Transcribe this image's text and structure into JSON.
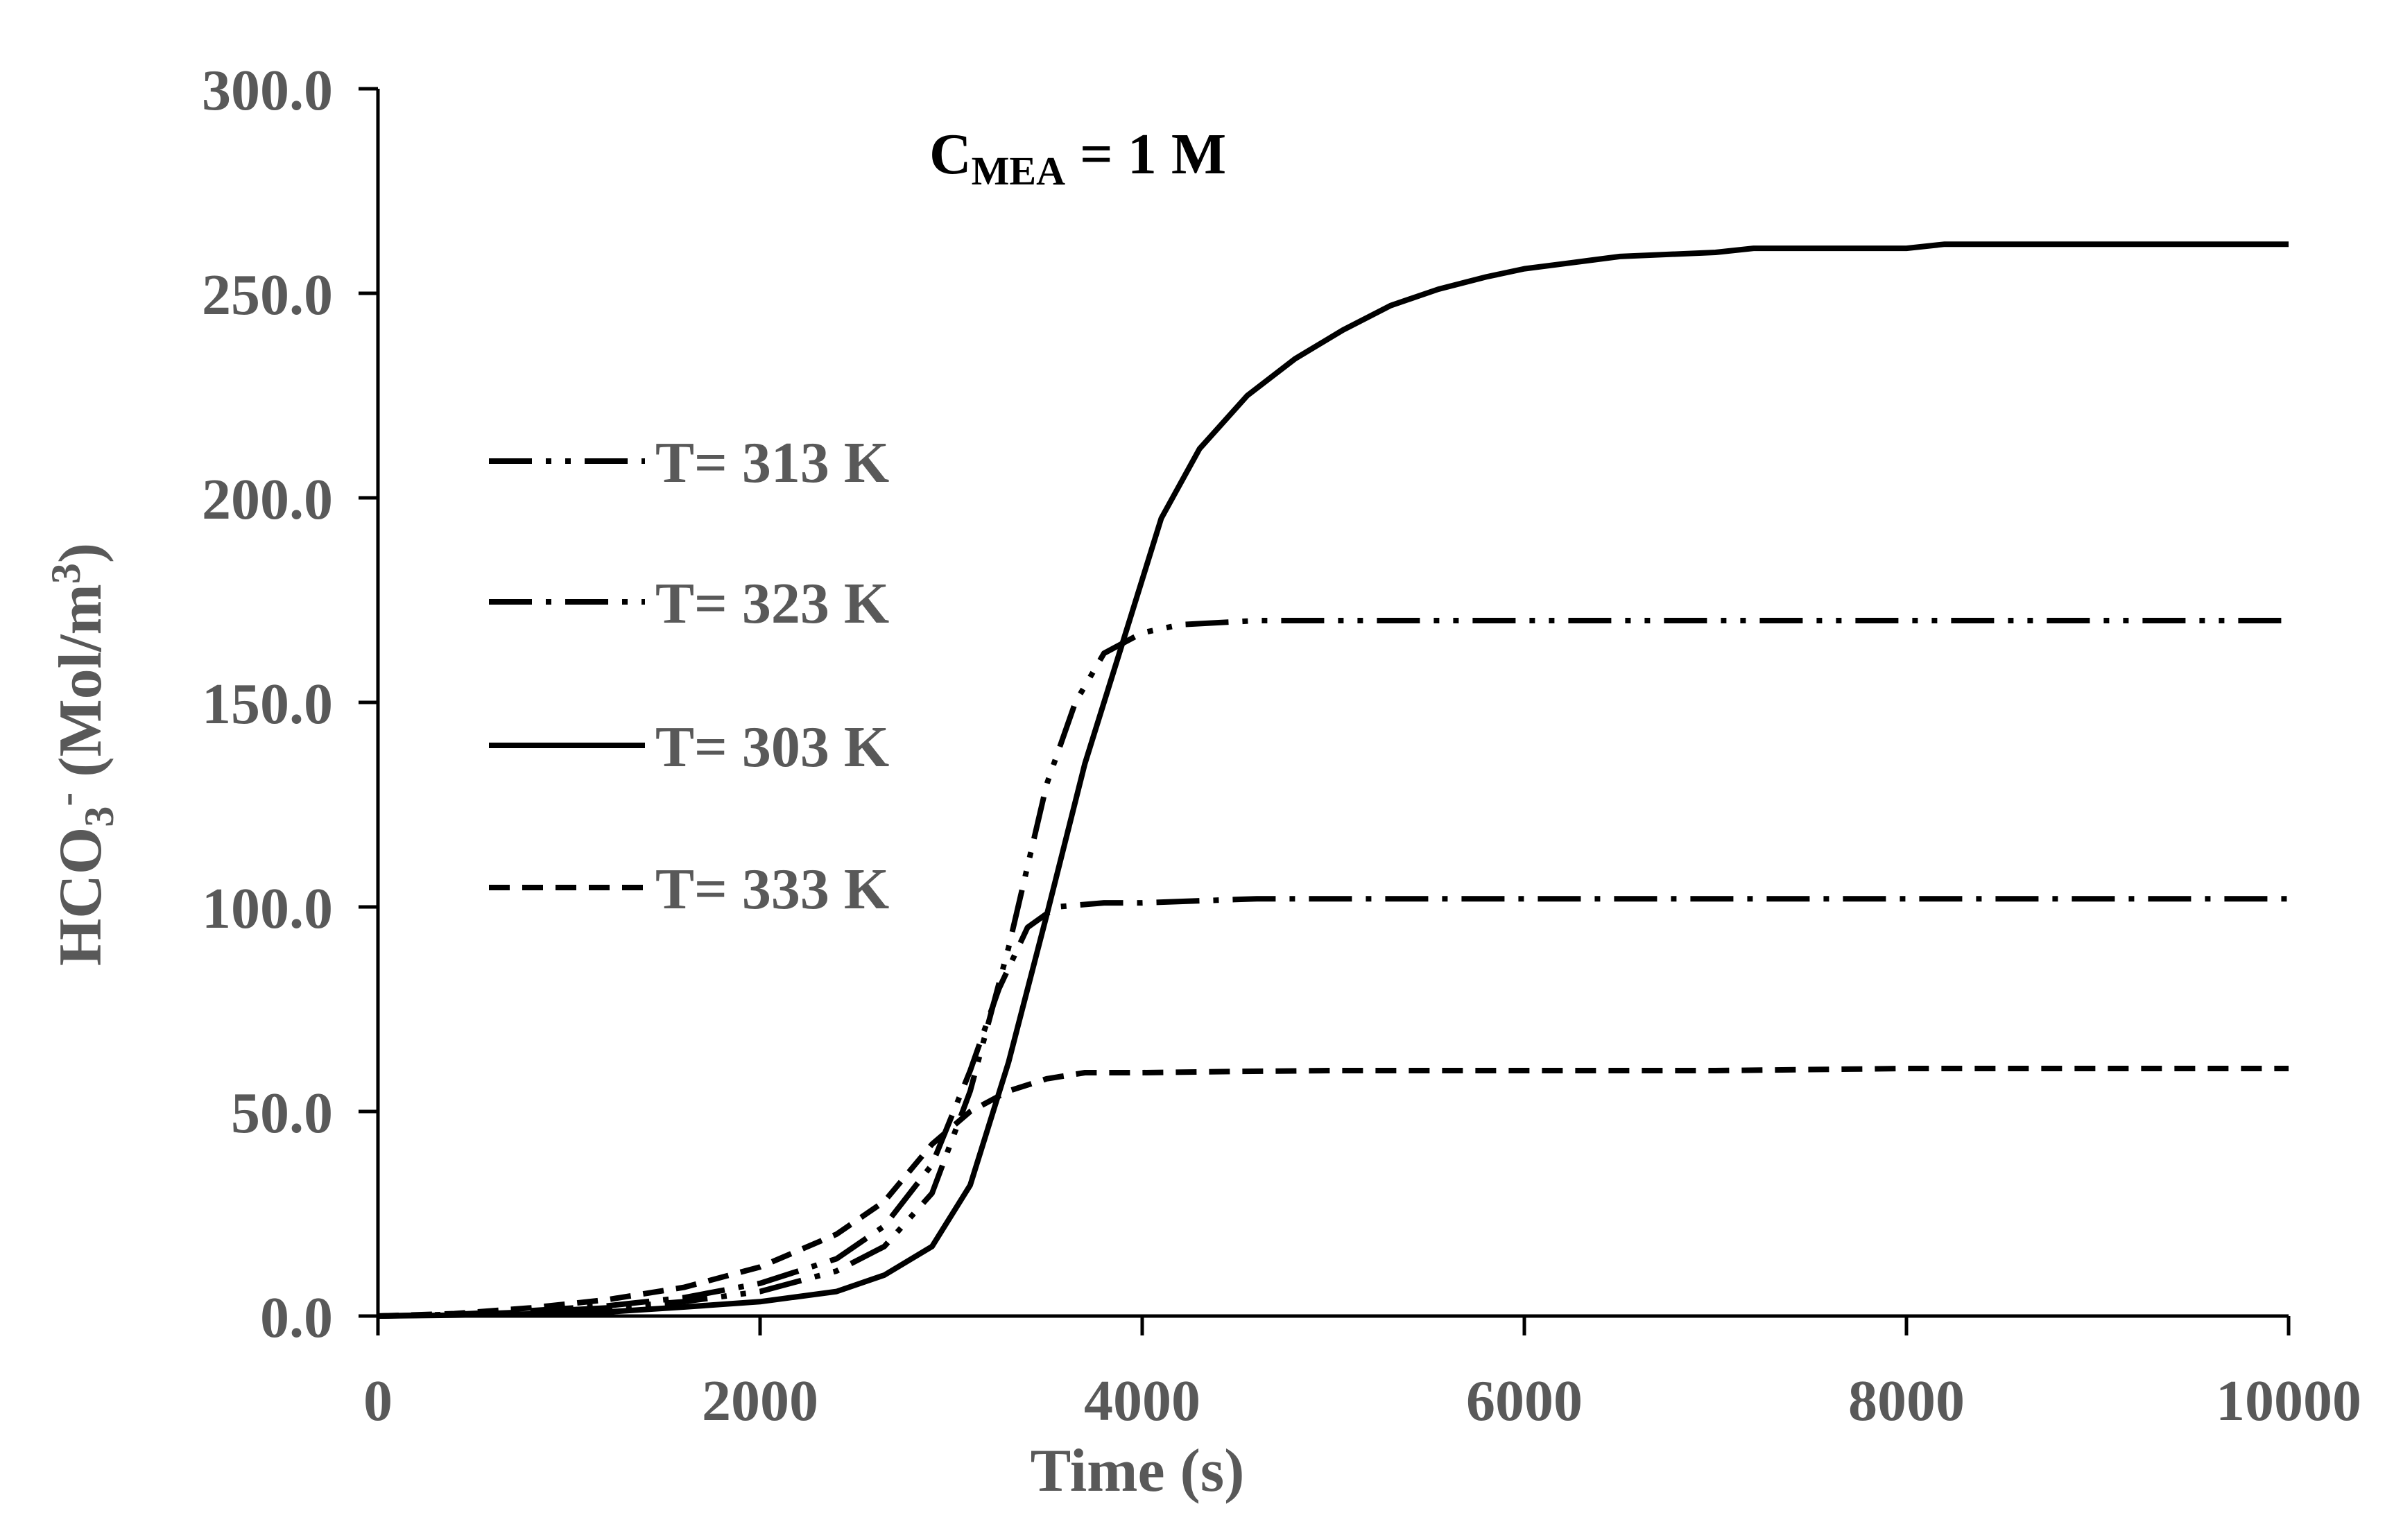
{
  "chart_data": {
    "type": "line",
    "title": "",
    "annotation": {
      "main": "C",
      "subscript": "MEA",
      "rest": " = 1 M"
    },
    "xlabel": "Time (s)",
    "ylabel": {
      "base": "HCO",
      "sub": "3",
      "sup": "-",
      "unit_open": " (Mol/m",
      "unit_sup": "3",
      "unit_close": ")"
    },
    "xlim": [
      0,
      10000
    ],
    "ylim": [
      0,
      300
    ],
    "x_ticks": [
      0,
      2000,
      4000,
      6000,
      8000,
      10000
    ],
    "x_tick_labels": [
      "0",
      "2000",
      "4000",
      "6000",
      "8000",
      "10000"
    ],
    "y_ticks": [
      0,
      50,
      100,
      150,
      200,
      250,
      300
    ],
    "y_tick_labels": [
      "0.0",
      "50.0",
      "100.0",
      "150.0",
      "200.0",
      "250.0",
      "300.0"
    ],
    "grid": false,
    "legend_position": "left",
    "series": [
      {
        "name": "T= 313 K",
        "dash": "long-dash-dot-dot",
        "x": [
          0,
          400,
          800,
          1200,
          1600,
          2000,
          2400,
          2650,
          2900,
          3100,
          3300,
          3500,
          3650,
          3800,
          4000,
          4200,
          4600,
          5000,
          6000,
          7000,
          8000,
          9000,
          10000
        ],
        "y": [
          0,
          0.3,
          1,
          2,
          3.5,
          6,
          11,
          17,
          30,
          55,
          90,
          130,
          150,
          162,
          167,
          169,
          170,
          170,
          170,
          170,
          170,
          170,
          170
        ]
      },
      {
        "name": "T= 323 K",
        "dash": "long-dash-dot",
        "x": [
          0,
          400,
          800,
          1200,
          1600,
          2000,
          2400,
          2650,
          2900,
          3100,
          3250,
          3400,
          3550,
          3800,
          4000,
          4600,
          5000,
          6000,
          7000,
          8000,
          9000,
          10000
        ],
        "y": [
          0,
          0.4,
          1.3,
          2.5,
          4.5,
          8,
          14,
          22,
          37,
          60,
          80,
          95,
          100,
          101,
          101,
          102,
          102,
          102,
          102,
          102,
          102,
          102
        ]
      },
      {
        "name": "T= 303 K",
        "dash": "solid",
        "x": [
          0,
          400,
          800,
          1200,
          1600,
          2000,
          2400,
          2650,
          2900,
          3100,
          3300,
          3500,
          3700,
          3900,
          4100,
          4300,
          4550,
          4800,
          5050,
          5300,
          5550,
          5800,
          6000,
          6250,
          6500,
          7000,
          7200,
          7500,
          8000,
          8200,
          9000,
          10000
        ],
        "y": [
          0,
          0.2,
          0.5,
          1,
          2.2,
          3.5,
          6,
          10,
          17,
          32,
          62,
          98,
          135,
          165,
          195,
          212,
          225,
          234,
          241,
          247,
          251,
          254,
          256,
          257.5,
          259,
          260,
          261,
          261,
          261,
          262,
          262,
          262
        ]
      },
      {
        "name": "T= 333 K",
        "dash": "short-dash",
        "x": [
          0,
          400,
          800,
          1200,
          1600,
          2000,
          2400,
          2650,
          2900,
          3100,
          3300,
          3500,
          3700,
          4000,
          4500,
          5000,
          6000,
          7000,
          8000,
          9000,
          10000
        ],
        "y": [
          0,
          0.6,
          2,
          4,
          7,
          12,
          20,
          28,
          42,
          50,
          55,
          58,
          59.5,
          59.5,
          59.8,
          60,
          60,
          60,
          60.5,
          60.5,
          60.5
        ]
      }
    ],
    "legend_order": [
      0,
      1,
      2,
      3
    ]
  }
}
